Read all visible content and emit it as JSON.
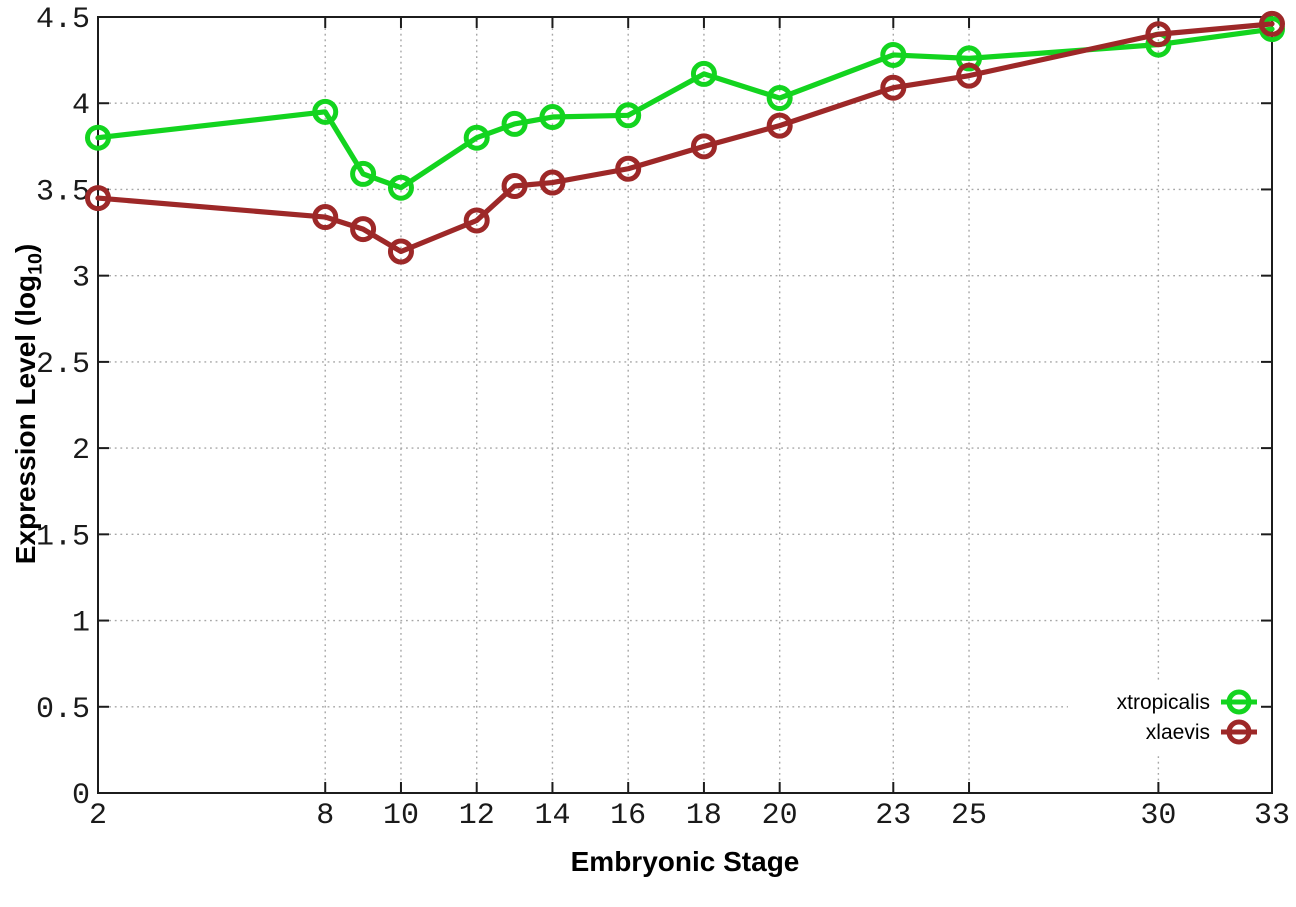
{
  "figure": {
    "background_color": "#ffffff",
    "border_color": "#1c1c1c",
    "grid_color": "#a6a6a6",
    "tick_label_color": "#1a1a1a"
  },
  "chart_data": {
    "type": "line",
    "title": "",
    "xlabel": "Embryonic Stage",
    "ylabel": "Expression Level (log10)",
    "ylabel_parts": {
      "prefix": "Expression Level (log",
      "sub": "10",
      "suffix": ")"
    },
    "xlim": [
      2,
      33
    ],
    "ylim": [
      0,
      4.5
    ],
    "x_ticks": [
      2,
      8,
      10,
      12,
      14,
      16,
      18,
      20,
      23,
      25,
      30,
      33
    ],
    "x_tick_labels": [
      "2",
      "8",
      "10",
      "12",
      "14",
      "16",
      "18",
      "20",
      "23",
      "25",
      "30",
      "33"
    ],
    "y_ticks": [
      0,
      0.5,
      1,
      1.5,
      2,
      2.5,
      3,
      3.5,
      4,
      4.5
    ],
    "y_tick_labels": [
      "0",
      "0.5",
      "1",
      "1.5",
      "2",
      "2.5",
      "3",
      "3.5",
      "4",
      "4.5"
    ],
    "grid": true,
    "marker": "open-circle",
    "legend_position": "bottom-right-inside",
    "x": [
      2,
      8,
      9,
      10,
      12,
      13,
      14,
      16,
      18,
      20,
      23,
      25,
      30,
      33
    ],
    "series": [
      {
        "name": "xtropicalis",
        "color": "#13d41f",
        "values": [
          3.8,
          3.95,
          3.59,
          3.51,
          3.8,
          3.88,
          3.92,
          3.93,
          4.17,
          4.03,
          4.28,
          4.26,
          4.34,
          4.43
        ]
      },
      {
        "name": "xlaevis",
        "color": "#9d2828",
        "values": [
          3.45,
          3.34,
          3.27,
          3.14,
          3.32,
          3.52,
          3.54,
          3.62,
          3.75,
          3.87,
          4.09,
          4.16,
          4.4,
          4.46
        ]
      }
    ]
  }
}
